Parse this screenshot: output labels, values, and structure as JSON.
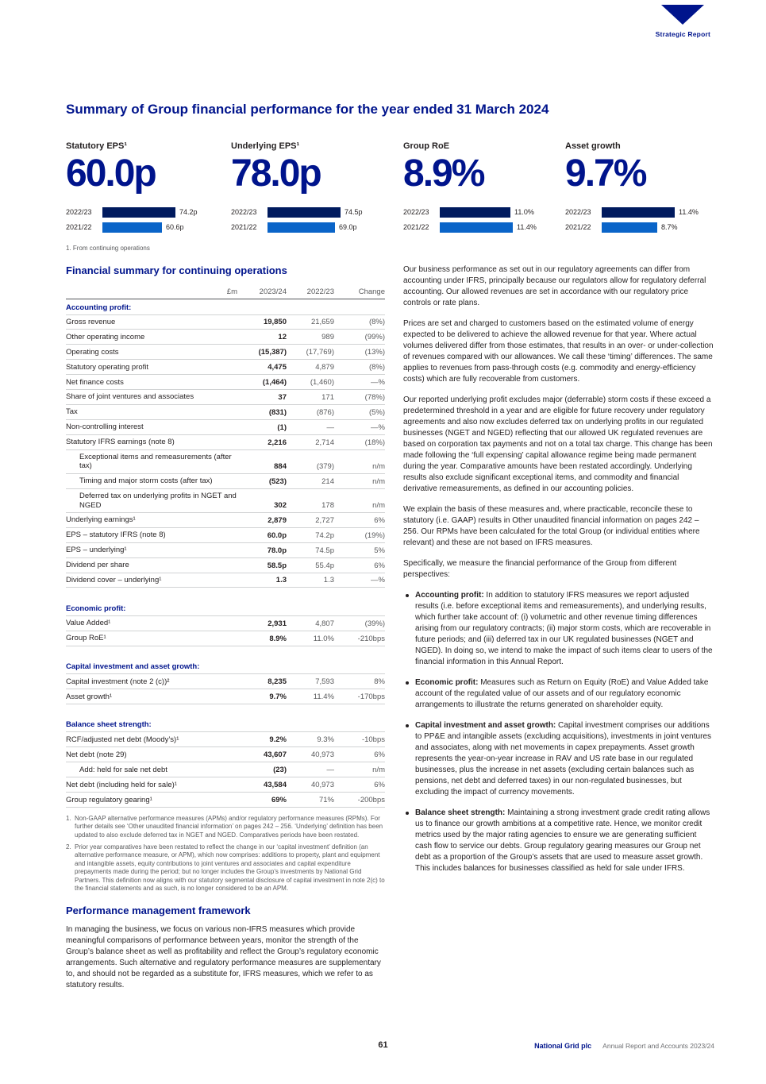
{
  "header": {
    "section_label": "Strategic Report"
  },
  "title": "Summary of Group financial performance for the year ended 31 March 2024",
  "kpis": [
    {
      "label": "Statutory EPS¹",
      "value": "60.0p",
      "bars": [
        {
          "year": "2022/23",
          "display": "74.2p",
          "value": 74.2
        },
        {
          "year": "2021/22",
          "display": "60.6p",
          "value": 60.6
        }
      ]
    },
    {
      "label": "Underlying EPS¹",
      "value": "78.0p",
      "bars": [
        {
          "year": "2022/23",
          "display": "74.5p",
          "value": 74.5
        },
        {
          "year": "2021/22",
          "display": "69.0p",
          "value": 69.0
        }
      ]
    },
    {
      "label": "Group RoE",
      "value": "8.9%",
      "bars": [
        {
          "year": "2022/23",
          "display": "11.0%",
          "value": 11.0
        },
        {
          "year": "2021/22",
          "display": "11.4%",
          "value": 11.4
        }
      ]
    },
    {
      "label": "Asset growth",
      "value": "9.7%",
      "bars": [
        {
          "year": "2022/23",
          "display": "11.4%",
          "value": 11.4
        },
        {
          "year": "2021/22",
          "display": "8.7%",
          "value": 8.7
        }
      ]
    }
  ],
  "kpi_footnote": "1.  From continuing operations",
  "financial_summary": {
    "heading": "Financial summary for continuing operations",
    "columns": [
      "£m",
      "2023/24",
      "2022/23",
      "Change"
    ],
    "rows": [
      {
        "type": "section",
        "label": "Accounting profit:"
      },
      {
        "type": "row",
        "label": "Gross revenue",
        "v1": "19,850",
        "v2": "21,659",
        "change": "(8%)"
      },
      {
        "type": "row",
        "label": "Other operating income",
        "v1": "12",
        "v2": "989",
        "change": "(99%)"
      },
      {
        "type": "row",
        "label": "Operating costs",
        "v1": "(15,387)",
        "v2": "(17,769)",
        "change": "(13%)"
      },
      {
        "type": "row",
        "label": "Statutory operating profit",
        "v1": "4,475",
        "v2": "4,879",
        "change": "(8%)"
      },
      {
        "type": "row",
        "label": "Net finance costs",
        "v1": "(1,464)",
        "v2": "(1,460)",
        "change": "—%"
      },
      {
        "type": "row",
        "label": "Share of joint ventures and associates",
        "v1": "37",
        "v2": "171",
        "change": "(78%)"
      },
      {
        "type": "row",
        "label": "Tax",
        "v1": "(831)",
        "v2": "(876)",
        "change": "(5%)"
      },
      {
        "type": "row",
        "label": "Non-controlling interest",
        "v1": "(1)",
        "v2": "—",
        "change": "—%"
      },
      {
        "type": "row",
        "label": "Statutory IFRS earnings (note 8)",
        "v1": "2,216",
        "v2": "2,714",
        "change": "(18%)"
      },
      {
        "type": "subrow",
        "label": "Exceptional items and remeasurements (after tax)",
        "v1": "884",
        "v2": "(379)",
        "change": "n/m"
      },
      {
        "type": "subrow",
        "label": "Timing and major storm costs (after tax)",
        "v1": "(523)",
        "v2": "214",
        "change": "n/m"
      },
      {
        "type": "subrow",
        "label": "Deferred tax on underlying profits in NGET and NGED",
        "v1": "302",
        "v2": "178",
        "change": "n/m"
      },
      {
        "type": "row",
        "label": "Underlying earnings¹",
        "v1": "2,879",
        "v2": "2,727",
        "change": "6%"
      },
      {
        "type": "row",
        "label": "EPS – statutory IFRS (note 8)",
        "v1": "60.0p",
        "v2": "74.2p",
        "change": "(19%)"
      },
      {
        "type": "row",
        "label": "EPS – underlying¹",
        "v1": "78.0p",
        "v2": "74.5p",
        "change": "5%"
      },
      {
        "type": "row",
        "label": "Dividend per share",
        "v1": "58.5p",
        "v2": "55.4p",
        "change": "6%"
      },
      {
        "type": "row",
        "label": "Dividend cover – underlying¹",
        "v1": "1.3",
        "v2": "1.3",
        "change": "—%"
      },
      {
        "type": "spacer"
      },
      {
        "type": "section",
        "label": "Economic profit:"
      },
      {
        "type": "row",
        "label": "Value Added¹",
        "v1": "2,931",
        "v2": "4,807",
        "change": "(39%)"
      },
      {
        "type": "row",
        "label": "Group RoE¹",
        "v1": "8.9%",
        "v2": "11.0%",
        "change": "-210bps"
      },
      {
        "type": "spacer"
      },
      {
        "type": "section",
        "label": "Capital investment and asset growth:"
      },
      {
        "type": "row",
        "label": "Capital investment (note 2 (c))²",
        "v1": "8,235",
        "v2": "7,593",
        "change": "8%"
      },
      {
        "type": "row",
        "label": "Asset growth¹",
        "v1": "9.7%",
        "v2": "11.4%",
        "change": "-170bps"
      },
      {
        "type": "spacer"
      },
      {
        "type": "section",
        "label": "Balance sheet strength:"
      },
      {
        "type": "row",
        "label": "RCF/adjusted net debt (Moody’s)¹",
        "v1": "9.2%",
        "v2": "9.3%",
        "change": "-10bps"
      },
      {
        "type": "row",
        "label": "Net debt (note 29)",
        "v1": "43,607",
        "v2": "40,973",
        "change": "6%"
      },
      {
        "type": "subrow",
        "label": "Add: held for sale net debt",
        "v1": "(23)",
        "v2": "—",
        "change": "n/m"
      },
      {
        "type": "row",
        "label": "Net debt (including held for sale)¹",
        "v1": "43,584",
        "v2": "40,973",
        "change": "6%"
      },
      {
        "type": "row",
        "label": "Group regulatory gearing¹",
        "v1": "69%",
        "v2": "71%",
        "change": "-200bps"
      }
    ],
    "footnotes": [
      {
        "num": "1.",
        "text": "Non-GAAP alternative performance measures (APMs) and/or regulatory performance measures (RPMs). For further details see ‘Other unaudited financial information’ on pages 242 – 256. ‘Underlying’ definition has been updated to also exclude deferred tax in NGET and NGED. Comparatives periods have been restated."
      },
      {
        "num": "2.",
        "text": "Prior year comparatives have been restated to reflect the change in our ‘capital investment’ definition (an alternative performance measure, or APM), which now comprises: additions to property, plant and equipment and intangible assets, equity contributions to joint ventures and associates and capital expenditure prepayments made during the period; but no longer includes the Group’s investments by National Grid Partners. This definition now aligns with our statutory segmental disclosure of capital investment in note 2(c) to the financial statements and as such, is no longer considered to be an APM."
      }
    ]
  },
  "left_bottom": {
    "heading": "Performance management framework",
    "body": "In managing the business, we focus on various non-IFRS measures which provide meaningful comparisons of performance between years, monitor the strength of the Group’s balance sheet as well as profitability and reflect the Group’s regulatory economic arrangements. Such alternative and regulatory performance measures are supplementary to, and should not be regarded as a substitute for, IFRS measures, which we refer to as statutory results."
  },
  "right_column": {
    "paragraphs": [
      "Our business performance as set out in our regulatory agreements can differ from accounting under IFRS, principally because our regulators allow for regulatory deferral accounting. Our allowed revenues are set in accordance with our regulatory price controls or rate plans.",
      "Prices are set and charged to customers based on the estimated volume of energy expected to be delivered to achieve the allowed revenue for that year. Where actual volumes delivered differ from those estimates, that results in an over- or under-collection of revenues compared with our allowances. We call these ‘timing’ differences. The same applies to revenues from pass-through costs (e.g. commodity and energy-efficiency costs) which are fully recoverable from customers.",
      "Our reported underlying profit excludes major (deferrable) storm costs if these exceed a predetermined threshold in a year and are eligible for future recovery under regulatory agreements and also now excludes deferred tax on underlying profits in our regulated businesses (NGET and NGED) reflecting that our allowed UK regulated revenues are based on corporation tax payments and not on a total tax charge. This change has been made following the ‘full expensing’ capital allowance regime being made permanent during the year. Comparative amounts have been restated accordingly. Underlying results also exclude significant exceptional items, and commodity and financial derivative remeasurements, as defined in our accounting policies.",
      "We explain the basis of these measures and, where practicable, reconcile these to statutory (i.e. GAAP) results in Other unaudited financial information on pages 242 – 256. Our RPMs have been calculated for the total Group (or individual entities where relevant) and these are not based on IFRS measures.",
      "Specifically, we measure the financial performance of the Group from different perspectives:"
    ],
    "bullets": [
      {
        "lead": "Accounting profit:",
        "text": "In addition to statutory IFRS measures we report adjusted results (i.e. before exceptional items and remeasurements), and underlying results, which further take account of: (i) volumetric and other revenue timing differences arising from our regulatory contracts; (ii) major storm costs, which are recoverable in future periods; and (iii) deferred tax in our UK regulated businesses (NGET and NGED). In doing so, we intend to make the impact of such items clear to users of the financial information in this Annual Report."
      },
      {
        "lead": "Economic profit:",
        "text": "Measures such as Return on Equity (RoE) and Value Added take account of the regulated value of our assets and of our regulatory economic arrangements to illustrate the returns generated on shareholder equity."
      },
      {
        "lead": "Capital investment and asset growth:",
        "text": "Capital investment comprises our additions to PP&E and intangible assets (excluding acquisitions), investments in joint ventures and associates, along with net movements in capex prepayments. Asset growth represents the year-on-year increase in RAV and US rate base in our regulated businesses, plus the increase in net assets (excluding certain balances such as pensions, net debt and deferred taxes) in our non-regulated businesses, but excluding the impact of currency movements."
      },
      {
        "lead": "Balance sheet strength:",
        "text": "Maintaining a strong investment grade credit rating allows us to finance our growth ambitions at a competitive rate. Hence, we monitor credit metrics used by the major rating agencies to ensure we are generating sufficient cash flow to service our debts. Group regulatory gearing measures our Group net debt as a proportion of the Group’s assets that are used to measure asset growth. This includes balances for businesses classified as held for sale under IFRS."
      }
    ]
  },
  "footer": {
    "page_number": "61",
    "company": "National Grid plc",
    "report": "Annual Report and Accounts 2023/24"
  },
  "colors": {
    "brand_blue": "#00148c",
    "bar_dark": "#001a5e",
    "bar_light": "#0a64c8"
  }
}
